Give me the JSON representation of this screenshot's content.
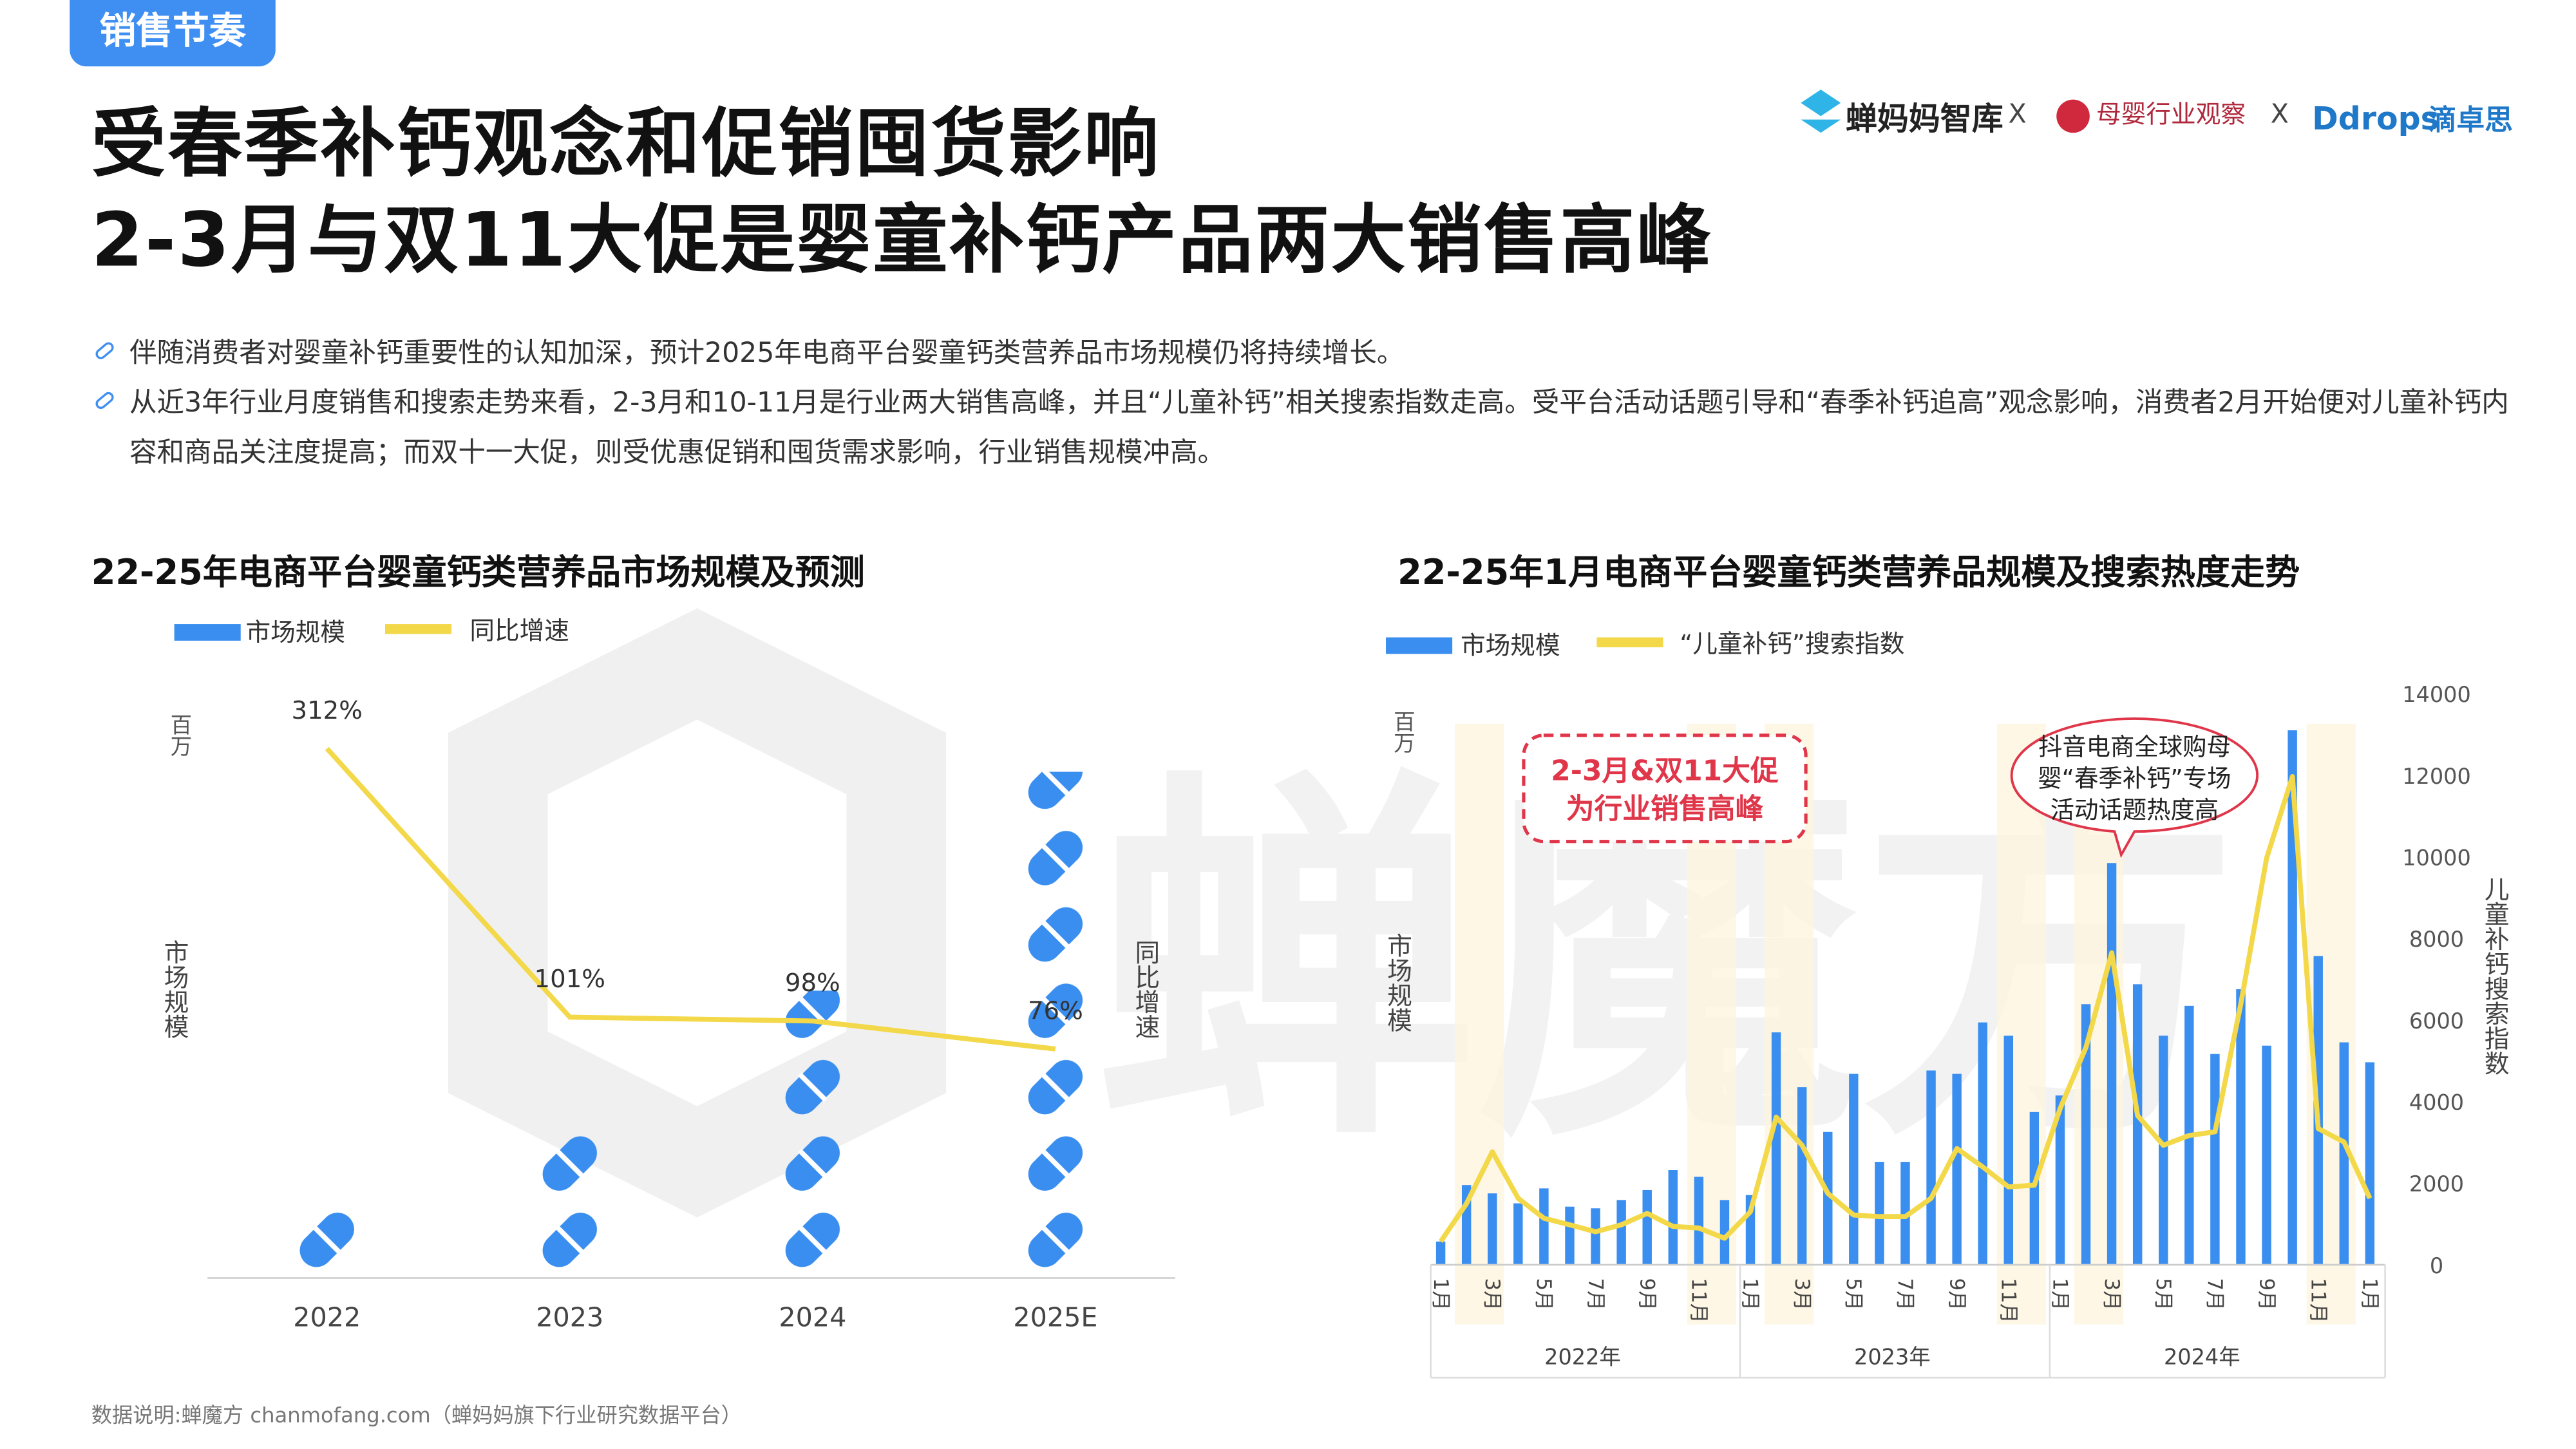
{
  "tag": "销售节奏",
  "title": [
    "受春季补钙观念和促销囤货影响",
    "2-3月与双11大促是婴童补钙产品两大销售高峰"
  ],
  "logos": {
    "chanmama": "蝉妈妈智库",
    "x1": "X",
    "muying": "母婴行业观察",
    "x2": "X",
    "ddrops": "Ddrops",
    "ddrops_cn": "滴卓思"
  },
  "bullets": [
    "伴随消费者对婴童补钙重要性的认知加深，预计2025年电商平台婴童钙类营养品市场规模仍将持续增长。",
    "从近3年行业月度销售和搜索走势来看，2-3月和10-11月是行业两大销售高峰，并且“儿童补钙”相关搜索指数走高。受平台活动话题引导和“春季补钙追高”观念影响，消费者2月开始便对儿童补钙内容和商品关注度提高；而双十一大促，则受优惠促销和囤货需求影响，行业销售规模冲高。"
  ],
  "watermark": "蝉魔方",
  "footnote": "数据说明:蝉魔方 chanmofang.com（蝉妈妈旗下行业研究数据平台）",
  "chart_data": [
    {
      "type": "pictograph",
      "title": "22-25年电商平台婴童钙类营养品市场规模及预测",
      "unit": "百万",
      "y_label": "市场规模",
      "y2_label": "同比增速",
      "categories": [
        "2022",
        "2023",
        "2024",
        "2025E"
      ],
      "series": [
        {
          "name": "市场规模",
          "type": "bar",
          "color": "#3a8ef0",
          "values": [
            42,
            87,
            172,
            303
          ]
        },
        {
          "name": "同比增速",
          "type": "line",
          "axis": "y2",
          "color": "#f3d84a",
          "values": [
            312,
            101,
            98,
            76
          ],
          "value_labels": [
            "312%",
            "101%",
            "98%",
            "76%"
          ]
        }
      ]
    },
    {
      "type": "bar_line",
      "title": "22-25年1月电商平台婴童钙类营养品规模及搜索热度走势",
      "unit": "百万",
      "y_label": "市场规模",
      "y2_label": "儿童补钙搜索指数",
      "categories": [
        "1月",
        null,
        "3月",
        null,
        "5月",
        null,
        "7月",
        null,
        "9月",
        null,
        "11月",
        null,
        "1月",
        null,
        "3月",
        null,
        "5月",
        null,
        "7月",
        null,
        "9月",
        null,
        "11月",
        null,
        "1月",
        null,
        "3月",
        null,
        "5月",
        null,
        "7月",
        null,
        "9月",
        null,
        "11月",
        null,
        "1月"
      ],
      "years": [
        "2022年",
        "2023年",
        "2024年"
      ],
      "y2lim": [
        0,
        14000
      ],
      "y2ticks": [
        0,
        2000,
        4000,
        6000,
        8000,
        10000,
        12000,
        14000
      ],
      "series": [
        {
          "name": "市场规模",
          "type": "bar",
          "color": "#3a8ef0",
          "values": [
            14,
            48,
            43,
            37,
            46,
            35,
            34,
            39,
            45,
            57,
            53,
            39,
            42,
            140,
            107,
            80,
            115,
            62,
            62,
            117,
            115,
            146,
            138,
            92,
            102,
            157,
            242,
            169,
            138,
            156,
            127,
            166,
            132,
            322,
            186,
            134,
            122
          ]
        },
        {
          "name": "“儿童补钙”搜索指数",
          "type": "line",
          "axis": "y2",
          "color": "#f3d84a",
          "values": [
            570,
            1500,
            2770,
            1630,
            1140,
            980,
            810,
            980,
            1260,
            940,
            900,
            650,
            1300,
            3620,
            2930,
            1750,
            1220,
            1180,
            1180,
            1630,
            2850,
            2400,
            1910,
            1950,
            3830,
            5330,
            7650,
            3660,
            2930,
            3170,
            3260,
            6390,
            9970,
            11970,
            3340,
            3010,
            1630
          ]
        }
      ],
      "annotations": [
        [
          "2-3月&双11大促",
          "为行业销售高峰"
        ],
        [
          "抖音电商全球购母",
          "婴“春季补钙”专场",
          "活动话题热度高"
        ]
      ]
    }
  ]
}
